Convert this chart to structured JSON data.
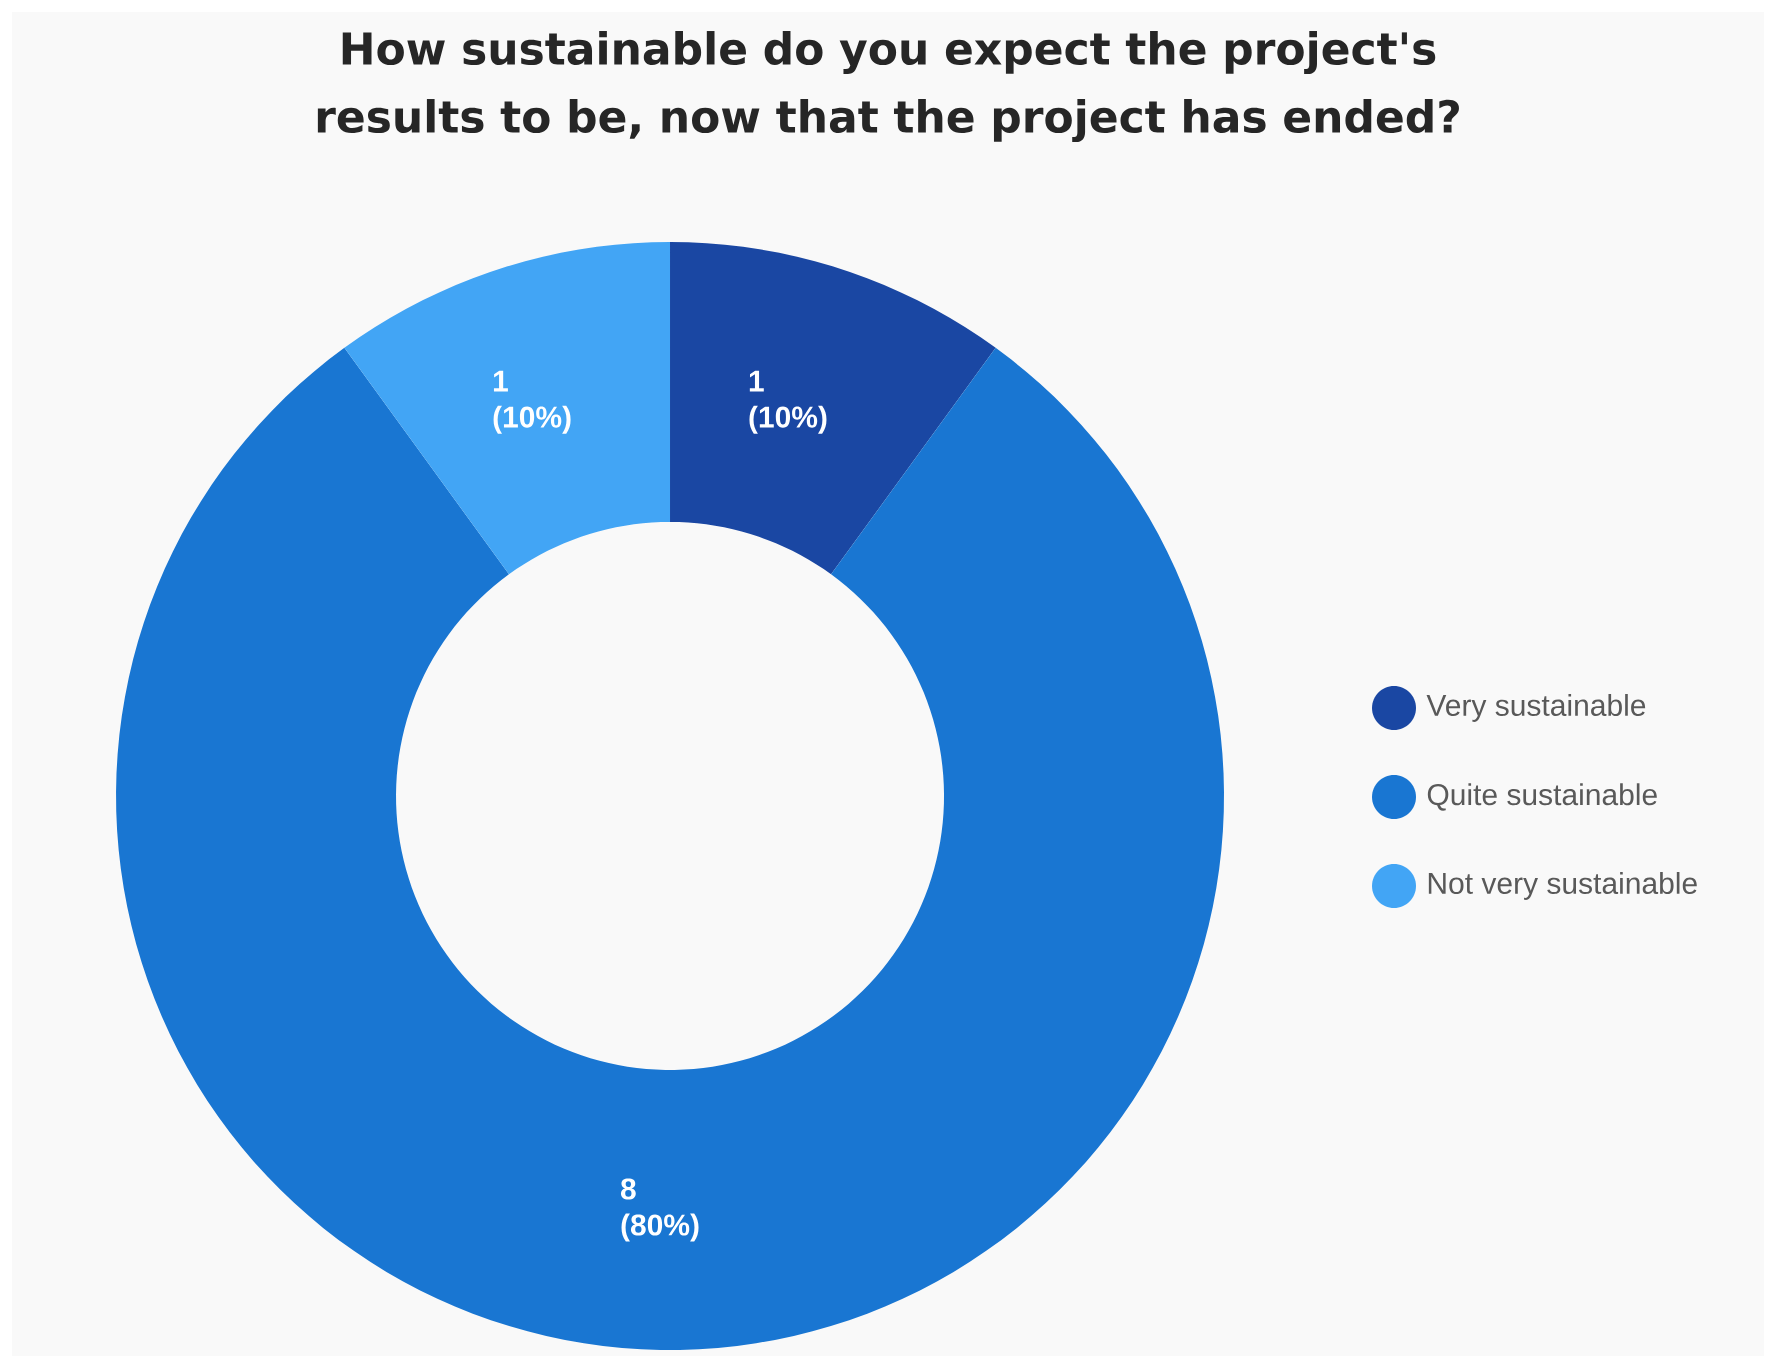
{
  "chart_data": {
    "type": "donut",
    "title": "How sustainable do you expect the project's results to be, now that the project has ended?",
    "categories": [
      "Very sustainable",
      "Quite sustainable",
      "Not very sustainable"
    ],
    "values": [
      1,
      8,
      1
    ],
    "colors": [
      "#1a47a3",
      "#1976d2",
      "#42a5f5"
    ],
    "value_labels": [
      "1 (10%)",
      "8 (80%)",
      "1 (10%)"
    ],
    "legend": "right"
  }
}
